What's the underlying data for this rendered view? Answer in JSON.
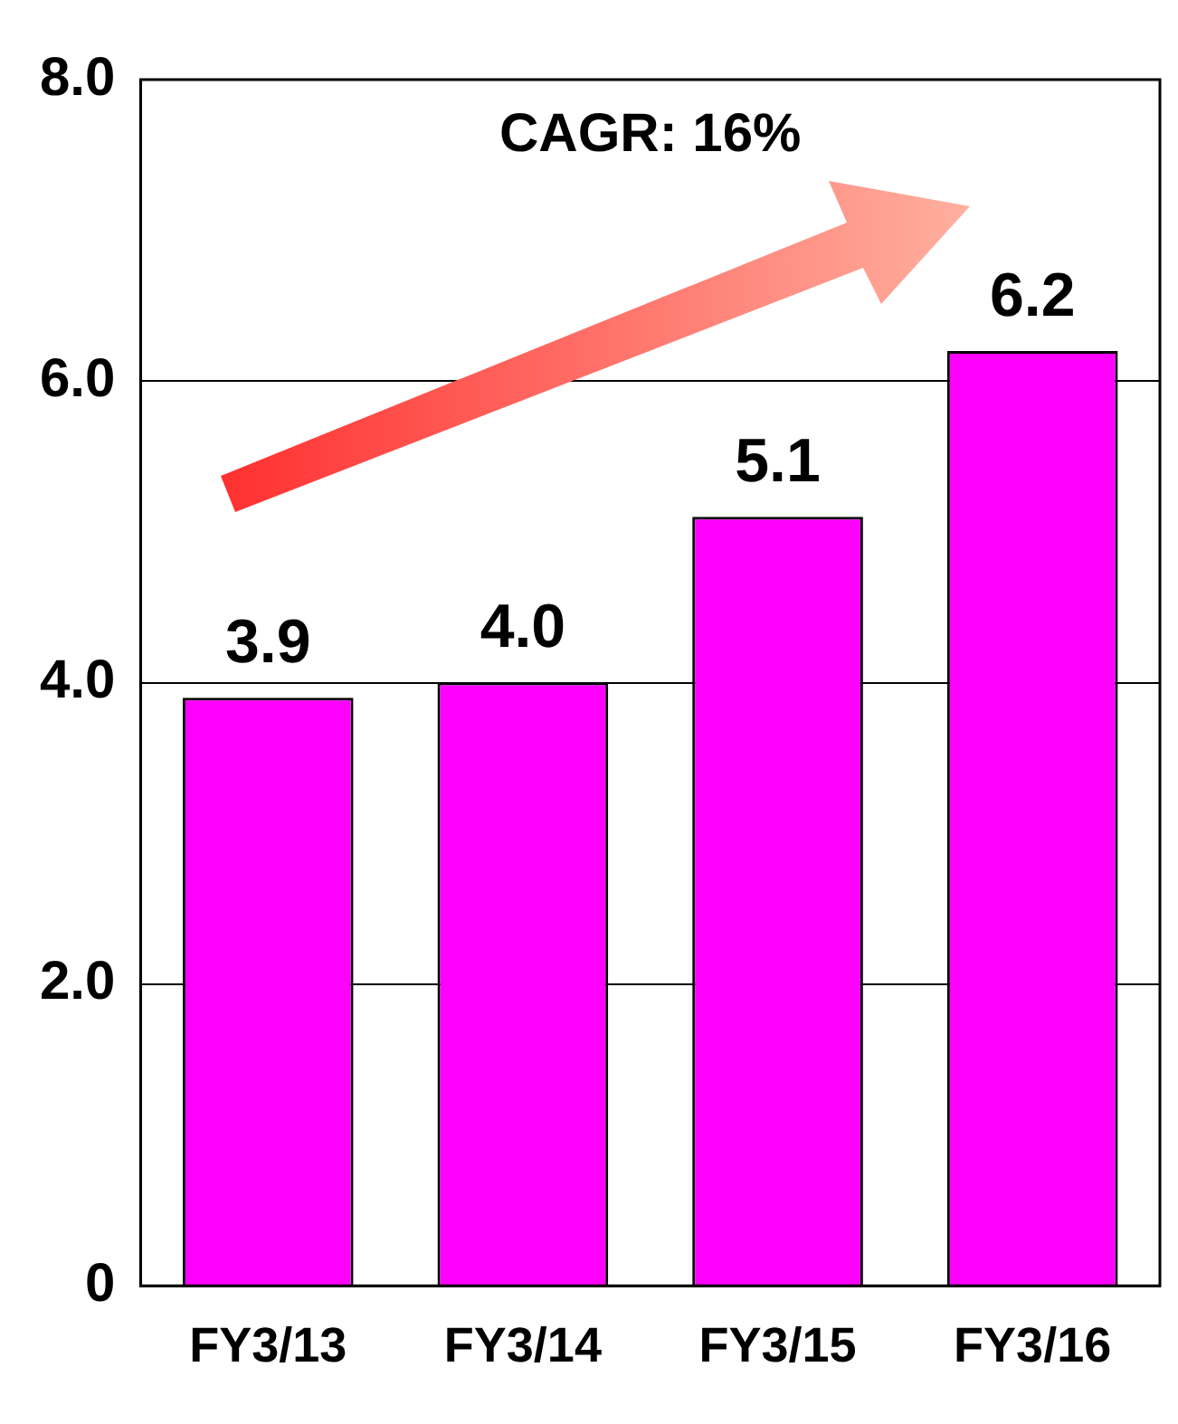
{
  "chart_data": {
    "type": "bar",
    "categories": [
      "FY3/13",
      "FY3/14",
      "FY3/15",
      "FY3/16"
    ],
    "values": [
      3.9,
      4.0,
      5.1,
      6.2
    ],
    "color": "#ff00ff",
    "ylim": [
      0,
      8
    ],
    "yticks": [
      0,
      {
        "value": 2,
        "label": "2.0"
      },
      {
        "value": 4,
        "label": "4.0"
      },
      {
        "value": 6,
        "label": "6.0"
      },
      {
        "value": 8,
        "label": "8.0"
      }
    ],
    "grid": "y",
    "value_labels": [
      "3.9",
      "4.0",
      "5.1",
      "6.2"
    ],
    "annotations": [
      "CAGR: 16%"
    ]
  }
}
